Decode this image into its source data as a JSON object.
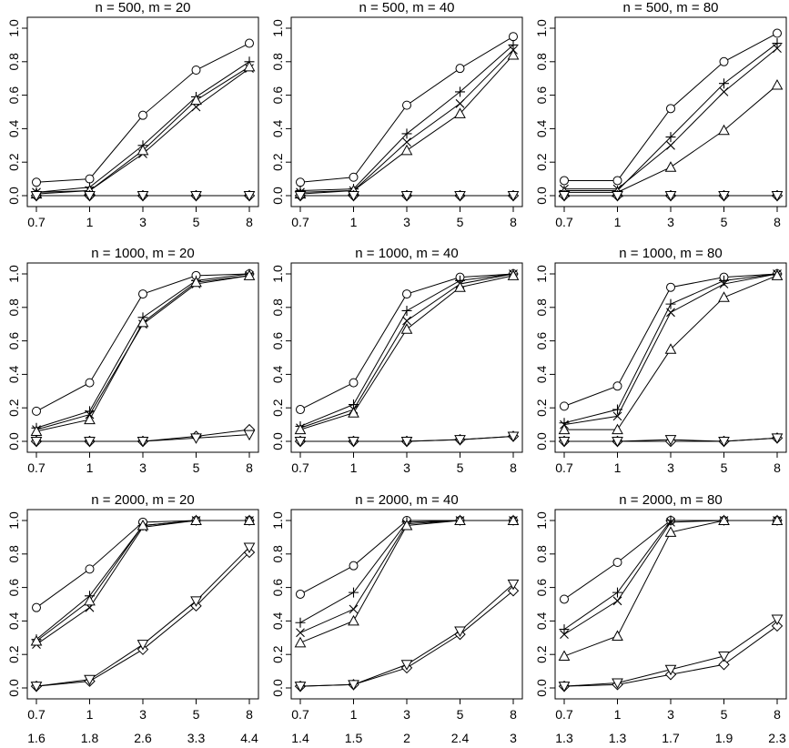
{
  "chart_data": [
    {
      "type": "line",
      "title": "n = 500, m = 20",
      "x": [
        "0.7",
        "1",
        "3",
        "5",
        "8"
      ],
      "x2": [],
      "ylim": [
        0,
        1.0
      ],
      "yticks": [
        "0.0",
        "0.2",
        "0.4",
        "0.6",
        "0.8",
        "1.0"
      ],
      "series": [
        {
          "marker": "circle",
          "values": [
            0.08,
            0.1,
            0.48,
            0.75,
            0.91
          ]
        },
        {
          "marker": "plus",
          "values": [
            0.02,
            0.05,
            0.3,
            0.59,
            0.8
          ]
        },
        {
          "marker": "cross",
          "values": [
            0.02,
            0.03,
            0.25,
            0.53,
            0.76
          ]
        },
        {
          "marker": "triangle-up",
          "values": [
            0.01,
            0.03,
            0.27,
            0.57,
            0.77
          ]
        },
        {
          "marker": "diamond",
          "values": [
            0.0,
            0.0,
            0.0,
            0.0,
            0.0
          ]
        },
        {
          "marker": "triangle-down",
          "values": [
            0.0,
            0.0,
            0.0,
            0.0,
            0.0
          ]
        }
      ]
    },
    {
      "type": "line",
      "title": "n = 500, m = 40",
      "x": [
        "0.7",
        "1",
        "3",
        "5",
        "8"
      ],
      "x2": [],
      "ylim": [
        0,
        1.0
      ],
      "yticks": [
        "0.0",
        "0.2",
        "0.4",
        "0.6",
        "0.8",
        "1.0"
      ],
      "series": [
        {
          "marker": "circle",
          "values": [
            0.08,
            0.11,
            0.54,
            0.76,
            0.95
          ]
        },
        {
          "marker": "plus",
          "values": [
            0.03,
            0.04,
            0.37,
            0.62,
            0.9
          ]
        },
        {
          "marker": "cross",
          "values": [
            0.02,
            0.03,
            0.32,
            0.55,
            0.87
          ]
        },
        {
          "marker": "triangle-up",
          "values": [
            0.01,
            0.03,
            0.27,
            0.49,
            0.84
          ]
        },
        {
          "marker": "diamond",
          "values": [
            0.0,
            0.0,
            0.0,
            0.0,
            0.0
          ]
        },
        {
          "marker": "triangle-down",
          "values": [
            0.0,
            0.0,
            0.0,
            0.0,
            0.0
          ]
        }
      ]
    },
    {
      "type": "line",
      "title": "n = 500, m = 80",
      "x": [
        "0.7",
        "1",
        "3",
        "5",
        "8"
      ],
      "x2": [],
      "ylim": [
        0,
        1.0
      ],
      "yticks": [
        "0.0",
        "0.2",
        "0.4",
        "0.6",
        "0.8",
        "1.0"
      ],
      "series": [
        {
          "marker": "circle",
          "values": [
            0.09,
            0.09,
            0.52,
            0.8,
            0.97
          ]
        },
        {
          "marker": "plus",
          "values": [
            0.03,
            0.03,
            0.35,
            0.67,
            0.91
          ]
        },
        {
          "marker": "cross",
          "values": [
            0.04,
            0.04,
            0.3,
            0.62,
            0.88
          ]
        },
        {
          "marker": "triangle-up",
          "values": [
            0.02,
            0.02,
            0.17,
            0.39,
            0.66
          ]
        },
        {
          "marker": "diamond",
          "values": [
            0.0,
            0.0,
            0.0,
            0.0,
            0.0
          ]
        },
        {
          "marker": "triangle-down",
          "values": [
            0.0,
            0.0,
            0.0,
            0.0,
            0.0
          ]
        }
      ]
    },
    {
      "type": "line",
      "title": "n = 1000, m = 20",
      "x": [
        "0.7",
        "1",
        "3",
        "5",
        "8"
      ],
      "x2": [],
      "ylim": [
        0,
        1.0
      ],
      "yticks": [
        "0.0",
        "0.2",
        "0.4",
        "0.6",
        "0.8",
        "1.0"
      ],
      "series": [
        {
          "marker": "circle",
          "values": [
            0.18,
            0.35,
            0.88,
            0.99,
            1.0
          ]
        },
        {
          "marker": "plus",
          "values": [
            0.08,
            0.18,
            0.74,
            0.96,
            1.0
          ]
        },
        {
          "marker": "cross",
          "values": [
            0.07,
            0.16,
            0.7,
            0.94,
            0.99
          ]
        },
        {
          "marker": "triangle-up",
          "values": [
            0.06,
            0.13,
            0.71,
            0.95,
            0.99
          ]
        },
        {
          "marker": "diamond",
          "values": [
            0.0,
            0.0,
            0.0,
            0.03,
            0.07
          ]
        },
        {
          "marker": "triangle-down",
          "values": [
            0.0,
            0.0,
            0.0,
            0.02,
            0.04
          ]
        }
      ]
    },
    {
      "type": "line",
      "title": "n = 1000, m = 40",
      "x": [
        "0.7",
        "1",
        "3",
        "5",
        "8"
      ],
      "x2": [],
      "ylim": [
        0,
        1.0
      ],
      "yticks": [
        "0.0",
        "0.2",
        "0.4",
        "0.6",
        "0.8",
        "1.0"
      ],
      "series": [
        {
          "marker": "circle",
          "values": [
            0.19,
            0.35,
            0.88,
            0.98,
            1.0
          ]
        },
        {
          "marker": "plus",
          "values": [
            0.09,
            0.22,
            0.78,
            0.96,
            1.0
          ]
        },
        {
          "marker": "cross",
          "values": [
            0.08,
            0.19,
            0.72,
            0.94,
            1.0
          ]
        },
        {
          "marker": "triangle-up",
          "values": [
            0.07,
            0.17,
            0.67,
            0.92,
            0.99
          ]
        },
        {
          "marker": "diamond",
          "values": [
            0.0,
            0.0,
            0.0,
            0.01,
            0.03
          ]
        },
        {
          "marker": "triangle-down",
          "values": [
            0.0,
            0.0,
            0.0,
            0.01,
            0.03
          ]
        }
      ]
    },
    {
      "type": "line",
      "title": "n = 1000, m = 80",
      "x": [
        "0.7",
        "1",
        "3",
        "5",
        "8"
      ],
      "x2": [],
      "ylim": [
        0,
        1.0
      ],
      "yticks": [
        "0.0",
        "0.2",
        "0.4",
        "0.6",
        "0.8",
        "1.0"
      ],
      "series": [
        {
          "marker": "circle",
          "values": [
            0.21,
            0.33,
            0.92,
            0.98,
            1.0
          ]
        },
        {
          "marker": "plus",
          "values": [
            0.11,
            0.19,
            0.82,
            0.96,
            1.0
          ]
        },
        {
          "marker": "cross",
          "values": [
            0.1,
            0.15,
            0.77,
            0.94,
            1.0
          ]
        },
        {
          "marker": "triangle-up",
          "values": [
            0.07,
            0.07,
            0.55,
            0.86,
            0.99
          ]
        },
        {
          "marker": "diamond",
          "values": [
            0.0,
            0.0,
            0.0,
            0.0,
            0.02
          ]
        },
        {
          "marker": "triangle-down",
          "values": [
            0.0,
            0.0,
            0.01,
            0.0,
            0.02
          ]
        }
      ]
    },
    {
      "type": "line",
      "title": "n = 2000, m = 20",
      "x": [
        "0.7",
        "1",
        "3",
        "5",
        "8"
      ],
      "x2": [
        "1.6",
        "1.8",
        "2.6",
        "3.3",
        "4.4"
      ],
      "ylim": [
        0,
        1.0
      ],
      "yticks": [
        "0.0",
        "0.2",
        "0.4",
        "0.6",
        "0.8",
        "1.0"
      ],
      "series": [
        {
          "marker": "circle",
          "values": [
            0.48,
            0.71,
            0.99,
            1.0,
            1.0
          ]
        },
        {
          "marker": "plus",
          "values": [
            0.29,
            0.55,
            0.97,
            1.0,
            1.0
          ]
        },
        {
          "marker": "cross",
          "values": [
            0.26,
            0.48,
            0.96,
            1.0,
            1.0
          ]
        },
        {
          "marker": "triangle-up",
          "values": [
            0.28,
            0.52,
            0.97,
            1.0,
            1.0
          ]
        },
        {
          "marker": "diamond",
          "values": [
            0.01,
            0.04,
            0.23,
            0.49,
            0.81
          ]
        },
        {
          "marker": "triangle-down",
          "values": [
            0.01,
            0.05,
            0.26,
            0.52,
            0.84
          ]
        }
      ]
    },
    {
      "type": "line",
      "title": "n = 2000, m = 40",
      "x": [
        "0.7",
        "1",
        "3",
        "5",
        "8"
      ],
      "x2": [
        "1.4",
        "1.5",
        "2",
        "2.4",
        "3"
      ],
      "ylim": [
        0,
        1.0
      ],
      "yticks": [
        "0.0",
        "0.2",
        "0.4",
        "0.6",
        "0.8",
        "1.0"
      ],
      "series": [
        {
          "marker": "circle",
          "values": [
            0.56,
            0.73,
            1.0,
            1.0,
            1.0
          ]
        },
        {
          "marker": "plus",
          "values": [
            0.39,
            0.57,
            0.99,
            1.0,
            1.0
          ]
        },
        {
          "marker": "cross",
          "values": [
            0.33,
            0.47,
            0.98,
            1.0,
            1.0
          ]
        },
        {
          "marker": "triangle-up",
          "values": [
            0.27,
            0.4,
            0.97,
            1.0,
            1.0
          ]
        },
        {
          "marker": "diamond",
          "values": [
            0.01,
            0.02,
            0.12,
            0.32,
            0.58
          ]
        },
        {
          "marker": "triangle-down",
          "values": [
            0.01,
            0.02,
            0.14,
            0.34,
            0.62
          ]
        }
      ]
    },
    {
      "type": "line",
      "title": "n = 2000, m = 80",
      "x": [
        "0.7",
        "1",
        "3",
        "5",
        "8"
      ],
      "x2": [
        "1.3",
        "1.3",
        "1.7",
        "1.9",
        "2.3"
      ],
      "ylim": [
        0,
        1.0
      ],
      "yticks": [
        "0.0",
        "0.2",
        "0.4",
        "0.6",
        "0.8",
        "1.0"
      ],
      "series": [
        {
          "marker": "circle",
          "values": [
            0.53,
            0.75,
            1.0,
            1.0,
            1.0
          ]
        },
        {
          "marker": "plus",
          "values": [
            0.35,
            0.57,
            1.0,
            1.0,
            1.0
          ]
        },
        {
          "marker": "cross",
          "values": [
            0.32,
            0.52,
            0.99,
            1.0,
            1.0
          ]
        },
        {
          "marker": "triangle-up",
          "values": [
            0.19,
            0.31,
            0.93,
            1.0,
            1.0
          ]
        },
        {
          "marker": "diamond",
          "values": [
            0.01,
            0.02,
            0.08,
            0.14,
            0.37
          ]
        },
        {
          "marker": "triangle-down",
          "values": [
            0.01,
            0.03,
            0.11,
            0.19,
            0.41
          ]
        }
      ]
    }
  ]
}
